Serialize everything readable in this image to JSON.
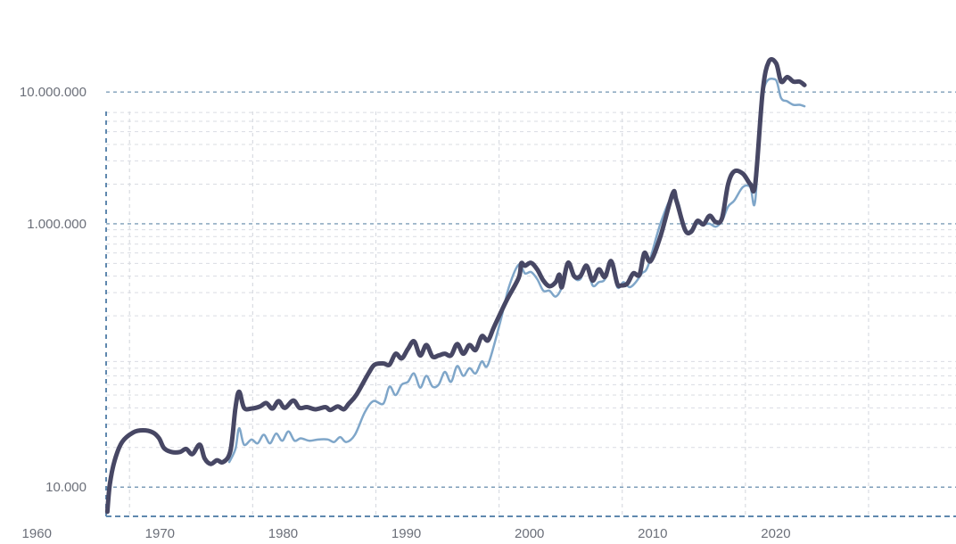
{
  "chart_data": {
    "type": "line",
    "title": "",
    "xlabel": "",
    "ylabel": "",
    "scale_y": "log",
    "grid": true,
    "xlim": [
      1959,
      2028
    ],
    "ylim": [
      6000,
      50000000
    ],
    "x_ticks": [
      1960,
      1970,
      1980,
      1990,
      2000,
      2010,
      2020
    ],
    "y_ticks": [
      {
        "value": 10000,
        "label": "10.000"
      },
      {
        "value": 1000000,
        "label": "1.000.000"
      },
      {
        "value": 10000000,
        "label": "10.000.000"
      }
    ],
    "series": [
      {
        "color": "#474764",
        "stroke_width": 5,
        "points": [
          [
            1959.1,
            6500
          ],
          [
            1959.3,
            10500
          ],
          [
            1959.7,
            16000
          ],
          [
            1960.3,
            22000
          ],
          [
            1961.2,
            26000
          ],
          [
            1962.0,
            27000
          ],
          [
            1962.8,
            26000
          ],
          [
            1963.3,
            23500
          ],
          [
            1963.7,
            19800
          ],
          [
            1964.3,
            18500
          ],
          [
            1965.0,
            18500
          ],
          [
            1965.5,
            19500
          ],
          [
            1966.0,
            17800
          ],
          [
            1966.6,
            21000
          ],
          [
            1967.0,
            16500
          ],
          [
            1967.5,
            15000
          ],
          [
            1968.0,
            16000
          ],
          [
            1968.5,
            15500
          ],
          [
            1969.1,
            19000
          ],
          [
            1969.5,
            40000
          ],
          [
            1969.8,
            53000
          ],
          [
            1970.2,
            40000
          ],
          [
            1970.8,
            39500
          ],
          [
            1971.5,
            41000
          ],
          [
            1972.0,
            43500
          ],
          [
            1972.5,
            39500
          ],
          [
            1973.0,
            45000
          ],
          [
            1973.5,
            40000
          ],
          [
            1974.2,
            45500
          ],
          [
            1974.7,
            40000
          ],
          [
            1975.3,
            40500
          ],
          [
            1976.0,
            39000
          ],
          [
            1976.8,
            40500
          ],
          [
            1977.2,
            38500
          ],
          [
            1977.8,
            41000
          ],
          [
            1978.3,
            39000
          ],
          [
            1978.7,
            43000
          ],
          [
            1979.3,
            50000
          ],
          [
            1980.3,
            73000
          ],
          [
            1980.8,
            85000
          ],
          [
            1981.5,
            87000
          ],
          [
            1982.0,
            85000
          ],
          [
            1982.5,
            103000
          ],
          [
            1983.0,
            95000
          ],
          [
            1983.5,
            112000
          ],
          [
            1984.0,
            128000
          ],
          [
            1984.5,
            100000
          ],
          [
            1985.0,
            120000
          ],
          [
            1985.5,
            98000
          ],
          [
            1986.0,
            100000
          ],
          [
            1986.5,
            103000
          ],
          [
            1987.0,
            100000
          ],
          [
            1987.5,
            122000
          ],
          [
            1988.0,
            103000
          ],
          [
            1988.5,
            120000
          ],
          [
            1989.0,
            110000
          ],
          [
            1989.5,
            140000
          ],
          [
            1990.0,
            130000
          ],
          [
            1990.5,
            165000
          ],
          [
            1991.5,
            260000
          ],
          [
            1992.5,
            390000
          ],
          [
            1992.7,
            500000
          ],
          [
            1993.0,
            480000
          ],
          [
            1993.5,
            505000
          ],
          [
            1994.0,
            450000
          ],
          [
            1994.5,
            370000
          ],
          [
            1995.0,
            335000
          ],
          [
            1995.5,
            360000
          ],
          [
            1995.8,
            410000
          ],
          [
            1996.0,
            330000
          ],
          [
            1996.5,
            505000
          ],
          [
            1997.0,
            400000
          ],
          [
            1997.5,
            400000
          ],
          [
            1998.0,
            480000
          ],
          [
            1998.5,
            370000
          ],
          [
            1999.0,
            450000
          ],
          [
            1999.5,
            395000
          ],
          [
            2000.0,
            520000
          ],
          [
            2000.5,
            350000
          ],
          [
            2000.8,
            340000
          ],
          [
            2001.3,
            350000
          ],
          [
            2001.8,
            420000
          ],
          [
            2002.3,
            410000
          ],
          [
            2002.7,
            600000
          ],
          [
            2003.2,
            520000
          ],
          [
            2004.0,
            800000
          ],
          [
            2005.0,
            1700000
          ],
          [
            2005.3,
            1500000
          ],
          [
            2006.0,
            900000
          ],
          [
            2006.5,
            870000
          ],
          [
            2007.0,
            1050000
          ],
          [
            2007.5,
            990000
          ],
          [
            2008.0,
            1150000
          ],
          [
            2008.5,
            1030000
          ],
          [
            2009.0,
            1100000
          ],
          [
            2009.5,
            2000000
          ],
          [
            2010.0,
            2500000
          ],
          [
            2010.7,
            2400000
          ],
          [
            2011.3,
            2000000
          ],
          [
            2011.7,
            2000000
          ],
          [
            2012.3,
            10000000
          ],
          [
            2012.8,
            17000000
          ],
          [
            2013.4,
            16500000
          ],
          [
            2013.8,
            12000000
          ],
          [
            2014.3,
            13000000
          ],
          [
            2014.8,
            12000000
          ],
          [
            2015.3,
            12000000
          ],
          [
            2015.7,
            11300000
          ]
        ]
      },
      {
        "color": "#7fa6c9",
        "stroke_width": 2.5,
        "points": [
          [
            1969.0,
            15500
          ],
          [
            1969.5,
            19500
          ],
          [
            1969.8,
            28000
          ],
          [
            1970.2,
            21000
          ],
          [
            1970.8,
            23000
          ],
          [
            1971.3,
            21500
          ],
          [
            1971.8,
            25000
          ],
          [
            1972.3,
            21500
          ],
          [
            1972.8,
            25500
          ],
          [
            1973.3,
            22500
          ],
          [
            1973.8,
            26500
          ],
          [
            1974.3,
            22500
          ],
          [
            1974.8,
            23500
          ],
          [
            1975.5,
            22500
          ],
          [
            1976.2,
            23000
          ],
          [
            1977.0,
            23000
          ],
          [
            1977.5,
            22000
          ],
          [
            1978.0,
            24000
          ],
          [
            1978.5,
            22000
          ],
          [
            1979.2,
            25000
          ],
          [
            1980.0,
            37000
          ],
          [
            1980.7,
            45000
          ],
          [
            1981.5,
            43000
          ],
          [
            1982.0,
            58000
          ],
          [
            1982.5,
            50000
          ],
          [
            1983.0,
            60000
          ],
          [
            1983.5,
            63000
          ],
          [
            1984.0,
            73000
          ],
          [
            1984.5,
            57000
          ],
          [
            1985.0,
            70000
          ],
          [
            1985.5,
            58000
          ],
          [
            1986.0,
            60000
          ],
          [
            1986.5,
            75000
          ],
          [
            1987.0,
            63000
          ],
          [
            1987.5,
            83000
          ],
          [
            1988.0,
            70000
          ],
          [
            1988.5,
            80000
          ],
          [
            1989.0,
            73000
          ],
          [
            1989.5,
            90000
          ],
          [
            1990.0,
            85000
          ],
          [
            1991.0,
            180000
          ],
          [
            1991.7,
            330000
          ],
          [
            1992.5,
            490000
          ],
          [
            1993.0,
            420000
          ],
          [
            1993.5,
            430000
          ],
          [
            1994.0,
            380000
          ],
          [
            1994.5,
            310000
          ],
          [
            1995.0,
            310000
          ],
          [
            1995.5,
            280000
          ],
          [
            1996.0,
            330000
          ],
          [
            1996.5,
            500000
          ],
          [
            1997.0,
            390000
          ],
          [
            1997.5,
            380000
          ],
          [
            1998.0,
            480000
          ],
          [
            1998.5,
            340000
          ],
          [
            1999.0,
            360000
          ],
          [
            1999.5,
            380000
          ],
          [
            2000.0,
            520000
          ],
          [
            2000.5,
            330000
          ],
          [
            2001.0,
            360000
          ],
          [
            2001.5,
            330000
          ],
          [
            2002.0,
            360000
          ],
          [
            2002.5,
            420000
          ],
          [
            2003.0,
            480000
          ],
          [
            2004.0,
            1000000
          ],
          [
            2005.0,
            1650000
          ],
          [
            2005.5,
            1400000
          ],
          [
            2006.0,
            870000
          ],
          [
            2006.5,
            900000
          ],
          [
            2007.0,
            1000000
          ],
          [
            2007.5,
            990000
          ],
          [
            2008.0,
            1000000
          ],
          [
            2008.5,
            950000
          ],
          [
            2009.0,
            1050000
          ],
          [
            2009.5,
            1350000
          ],
          [
            2010.0,
            1500000
          ],
          [
            2010.7,
            1900000
          ],
          [
            2011.3,
            1900000
          ],
          [
            2011.7,
            1500000
          ],
          [
            2012.3,
            9500000
          ],
          [
            2013.3,
            12500000
          ],
          [
            2013.8,
            9000000
          ],
          [
            2014.3,
            8500000
          ],
          [
            2014.8,
            8000000
          ],
          [
            2015.3,
            8000000
          ],
          [
            2015.7,
            7800000
          ]
        ]
      }
    ]
  }
}
